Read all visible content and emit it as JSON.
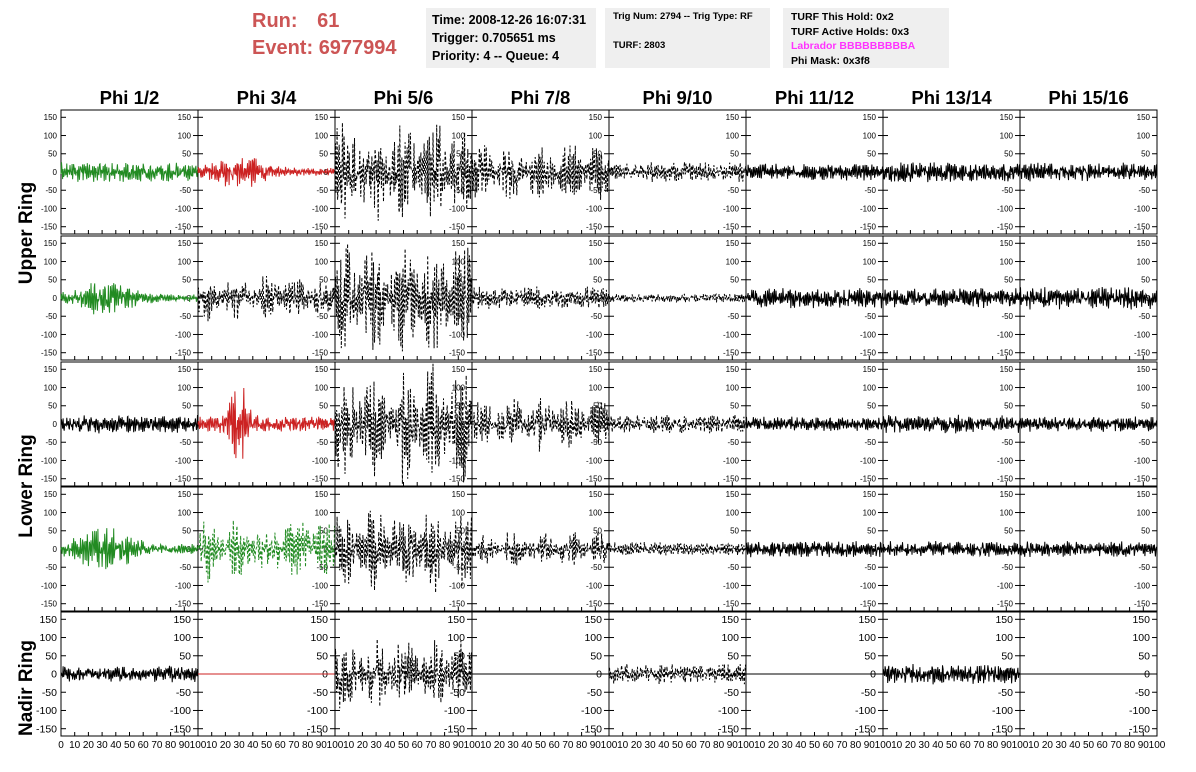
{
  "header": {
    "run_label": "Run:",
    "run_value": "61",
    "event_label": "Event:",
    "event_value": "6977994",
    "time": "Time: 2008-12-26 16:07:31",
    "trigger": "Trigger: 0.705651 ms",
    "priority": "Priority: 4 -- Queue: 4",
    "trig_num": "Trig Num: 2794 -- Trig Type: RF",
    "turf": "TURF: 2803",
    "turf_this_hold": "TURF This Hold: 0x2",
    "turf_active_holds": "TURF Active Holds: 0x3",
    "labrador": "Labrador BBBBBBBBBA",
    "phi_mask": "Phi Mask: 0x3f8"
  },
  "columns": [
    "Phi 1/2",
    "Phi 3/4",
    "Phi 5/6",
    "Phi 7/8",
    "Phi 9/10",
    "Phi 11/12",
    "Phi 13/14",
    "Phi 15/16"
  ],
  "rings": [
    "Upper Ring",
    "Lower Ring",
    "Nadir Ring"
  ],
  "colors": {
    "green": "#228b22",
    "red": "#cc2222",
    "black": "#000000",
    "run_text": "#cc5555",
    "labrador": "#ff33ff"
  },
  "chart_data": {
    "type": "line",
    "title": "",
    "xlabel": "",
    "ylabel": "",
    "xlim": [
      0,
      100
    ],
    "ylim": [
      -170,
      170
    ],
    "x_ticks": [
      "0",
      "10",
      "20",
      "30",
      "40",
      "50",
      "60",
      "70",
      "80",
      "90",
      "100"
    ],
    "y_ticks": [
      150,
      100,
      50,
      0,
      -50,
      -100,
      -150
    ],
    "grid": false,
    "note_rows": "Rows 1-2 belong to Upper Ring, rows 3-4 to Lower Ring, row 5 to Nadir Ring",
    "panels": [
      [
        {
          "col": 0,
          "color": "green",
          "dashed": false,
          "amp": 22,
          "envelope": "uniform"
        },
        {
          "col": 1,
          "color": "red",
          "dashed": false,
          "amp": 35,
          "envelope": "early"
        },
        {
          "col": 2,
          "color": "black",
          "dashed": true,
          "amp": 120,
          "envelope": "beat"
        },
        {
          "col": 3,
          "color": "black",
          "dashed": true,
          "amp": 65,
          "envelope": "beat"
        },
        {
          "col": 4,
          "color": "black",
          "dashed": true,
          "amp": 22,
          "envelope": "uniform"
        },
        {
          "col": 5,
          "color": "black",
          "dashed": false,
          "amp": 18,
          "envelope": "uniform"
        },
        {
          "col": 6,
          "color": "black",
          "dashed": false,
          "amp": 22,
          "envelope": "uniform"
        },
        {
          "col": 7,
          "color": "black",
          "dashed": false,
          "amp": 20,
          "envelope": "uniform"
        }
      ],
      [
        {
          "col": 0,
          "color": "green",
          "dashed": false,
          "amp": 35,
          "envelope": "early"
        },
        {
          "col": 1,
          "color": "black",
          "dashed": true,
          "amp": 50,
          "envelope": "beat"
        },
        {
          "col": 2,
          "color": "black",
          "dashed": true,
          "amp": 130,
          "envelope": "beat"
        },
        {
          "col": 3,
          "color": "black",
          "dashed": true,
          "amp": 25,
          "envelope": "uniform"
        },
        {
          "col": 4,
          "color": "black",
          "dashed": true,
          "amp": 10,
          "envelope": "uniform"
        },
        {
          "col": 5,
          "color": "black",
          "dashed": false,
          "amp": 22,
          "envelope": "uniform"
        },
        {
          "col": 6,
          "color": "black",
          "dashed": false,
          "amp": 22,
          "envelope": "uniform"
        },
        {
          "col": 7,
          "color": "black",
          "dashed": false,
          "amp": 25,
          "envelope": "uniform"
        }
      ],
      [
        {
          "col": 0,
          "color": "black",
          "dashed": false,
          "amp": 20,
          "envelope": "uniform"
        },
        {
          "col": 1,
          "color": "red",
          "dashed": false,
          "amp": 55,
          "envelope": "spike"
        },
        {
          "col": 2,
          "color": "black",
          "dashed": true,
          "amp": 135,
          "envelope": "beat"
        },
        {
          "col": 3,
          "color": "black",
          "dashed": true,
          "amp": 60,
          "envelope": "beat"
        },
        {
          "col": 4,
          "color": "black",
          "dashed": true,
          "amp": 20,
          "envelope": "uniform"
        },
        {
          "col": 5,
          "color": "black",
          "dashed": false,
          "amp": 16,
          "envelope": "uniform"
        },
        {
          "col": 6,
          "color": "black",
          "dashed": false,
          "amp": 20,
          "envelope": "uniform"
        },
        {
          "col": 7,
          "color": "black",
          "dashed": false,
          "amp": 17,
          "envelope": "uniform"
        }
      ],
      [
        {
          "col": 0,
          "color": "green",
          "dashed": false,
          "amp": 45,
          "envelope": "early"
        },
        {
          "col": 1,
          "color": "green",
          "dashed": true,
          "amp": 75,
          "envelope": "beat"
        },
        {
          "col": 2,
          "color": "black",
          "dashed": true,
          "amp": 95,
          "envelope": "beat"
        },
        {
          "col": 3,
          "color": "black",
          "dashed": true,
          "amp": 40,
          "envelope": "beat"
        },
        {
          "col": 4,
          "color": "black",
          "dashed": true,
          "amp": 15,
          "envelope": "uniform"
        },
        {
          "col": 5,
          "color": "black",
          "dashed": false,
          "amp": 18,
          "envelope": "uniform"
        },
        {
          "col": 6,
          "color": "black",
          "dashed": false,
          "amp": 17,
          "envelope": "uniform"
        },
        {
          "col": 7,
          "color": "black",
          "dashed": false,
          "amp": 18,
          "envelope": "uniform"
        }
      ],
      [
        {
          "col": 0,
          "color": "black",
          "dashed": false,
          "amp": 18,
          "envelope": "uniform"
        },
        {
          "col": 1,
          "color": "red",
          "dashed": false,
          "amp": 0,
          "envelope": "flat"
        },
        {
          "col": 2,
          "color": "black",
          "dashed": true,
          "amp": 80,
          "envelope": "beat"
        },
        {
          "col": 3,
          "color": "black",
          "dashed": false,
          "amp": 0,
          "envelope": "flat"
        },
        {
          "col": 4,
          "color": "black",
          "dashed": true,
          "amp": 22,
          "envelope": "uniform"
        },
        {
          "col": 5,
          "color": "black",
          "dashed": false,
          "amp": 0,
          "envelope": "flat"
        },
        {
          "col": 6,
          "color": "black",
          "dashed": false,
          "amp": 22,
          "envelope": "uniform"
        },
        {
          "col": 7,
          "color": "black",
          "dashed": false,
          "amp": 0,
          "envelope": "flat"
        }
      ]
    ]
  }
}
